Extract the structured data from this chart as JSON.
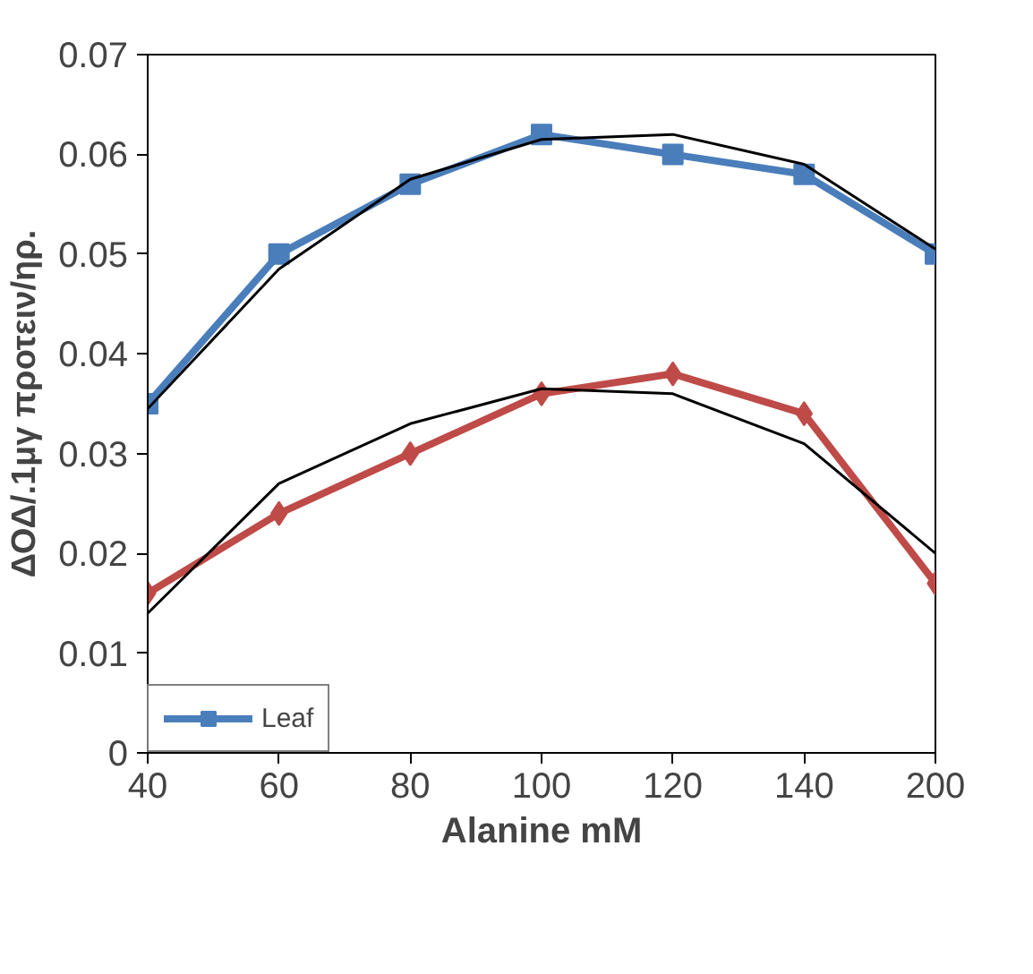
{
  "chart_data": {
    "type": "line",
    "xlabel": "Alanine mM",
    "ylabel": "ΔΟΔ/.1μγ προτειν/ηρ.",
    "categories": [
      "40",
      "60",
      "80",
      "100",
      "120",
      "140",
      "200"
    ],
    "series": [
      {
        "name": "Leaf",
        "color": "#4a7ebb",
        "marker": "square",
        "values": [
          0.035,
          0.05,
          0.057,
          0.062,
          0.06,
          0.058,
          0.05
        ]
      },
      {
        "color": "#be4b48",
        "marker": "diamond",
        "values": [
          0.016,
          0.024,
          0.03,
          0.036,
          0.038,
          0.034,
          0.017
        ]
      },
      {
        "color": "#000000",
        "marker": "none",
        "values": [
          0.0345,
          0.0485,
          0.0575,
          0.0615,
          0.062,
          0.059,
          0.0505
        ]
      },
      {
        "color": "#000000",
        "marker": "none",
        "values": [
          0.014,
          0.027,
          0.033,
          0.0365,
          0.036,
          0.031,
          0.02
        ]
      }
    ],
    "ylim": [
      0,
      0.07
    ],
    "yticks": [
      0,
      0.01,
      0.02,
      0.03,
      0.04,
      0.05,
      0.06,
      0.07
    ],
    "grid": false,
    "legend": "bottom left",
    "line_style": "solid"
  }
}
